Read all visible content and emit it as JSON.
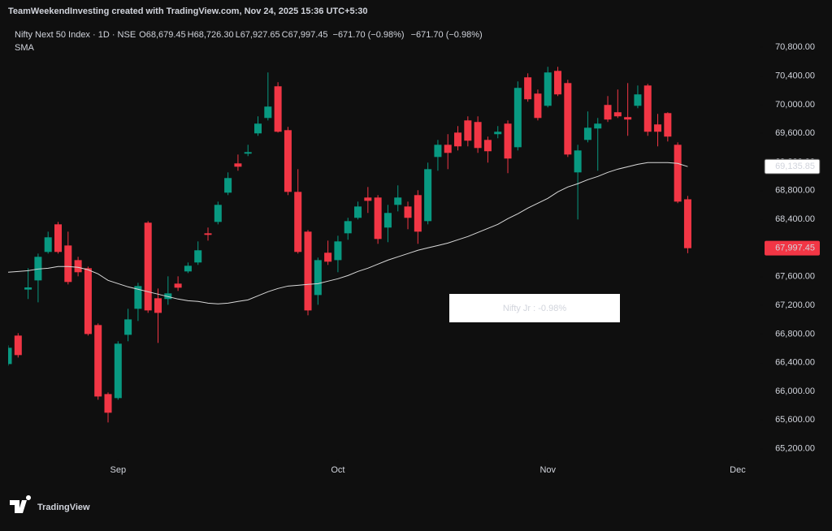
{
  "chart_data": {
    "type": "candlestick",
    "caption": "TeamWeekendInvesting created with TradingView.com, Nov 24, 2025 15:36 UTC+5:30",
    "symbol": "Nifty Next 50 Index · 1D · NSE",
    "ohlc_legend": [
      {
        "key": "O",
        "label": "68,679.45"
      },
      {
        "key": "H",
        "label": "68,726.30"
      },
      {
        "key": "L",
        "label": "67,927.65"
      },
      {
        "key": "C",
        "label": "67,997.45"
      }
    ],
    "change_labels": [
      "−671.70 (−0.98%)",
      "−671.70 (−0.98%)"
    ],
    "annotation": "Nifty Jr : -0.98%",
    "logo": "TradingView",
    "up_color": "#089981",
    "down_color": "#f23645",
    "open": [
      66381,
      66778,
      67420,
      67548,
      67945,
      68330,
      68035,
      67831,
      67718,
      66925,
      65962,
      65906,
      66789,
      67152,
      68353,
      67299,
      67288,
      67503,
      67673,
      67798,
      68205,
      68364,
      68772,
      69180,
      69316,
      69599,
      69814,
      70256,
      69644,
      68783,
      68228,
      67344,
      67934,
      67831,
      68205,
      68421,
      68704,
      68704,
      68285,
      68602,
      68579,
      68738,
      68375,
      69270,
      69440,
      69610,
      69780,
      69758,
      69508,
      69588,
      69735,
      69406,
      70381,
      70154,
      69984,
      70471,
      70301,
      69055,
      69508,
      69667,
      69996,
      69894,
      69826,
      69984,
      70267,
      69724,
      69882,
      69440,
      68679.45
    ],
    "high": [
      66642,
      66812,
      67718,
      67922,
      68228,
      68364,
      68228,
      67877,
      67741,
      66948,
      65985,
      66699,
      67152,
      67514,
      68375,
      67435,
      67605,
      67605,
      67798,
      68092,
      68285,
      68647,
      69055,
      69304,
      69440,
      69837,
      70449,
      70313,
      69690,
      69100,
      68251,
      67866,
      68103,
      68171,
      68421,
      68647,
      68851,
      68738,
      68602,
      68874,
      68647,
      68806,
      69191,
      69508,
      69588,
      69701,
      69837,
      69837,
      69554,
      69701,
      69780,
      70324,
      70437,
      70211,
      70528,
      70528,
      70347,
      69440,
      69905,
      69814,
      70120,
      70211,
      70301,
      70267,
      70290,
      69871,
      69894,
      69474,
      68726.3
    ],
    "low": [
      66359,
      66472,
      67288,
      67242,
      67922,
      67922,
      67492,
      67605,
      66778,
      65883,
      65566,
      65883,
      66699,
      66982,
      67095,
      66676,
      67208,
      67401,
      67650,
      67764,
      68103,
      68330,
      68738,
      69078,
      69282,
      69565,
      69780,
      69610,
      68738,
      67922,
      67061,
      67208,
      67764,
      67662,
      68115,
      68398,
      68489,
      68058,
      68081,
      68511,
      68262,
      68058,
      68330,
      69078,
      69100,
      69361,
      69418,
      69327,
      69191,
      69531,
      69044,
      69361,
      70041,
      69780,
      69962,
      70120,
      69270,
      68398,
      69474,
      69078,
      69758,
      69814,
      69565,
      69950,
      69565,
      69418,
      69486,
      68625,
      67927.65
    ],
    "close": [
      66608,
      66506,
      67450,
      67877,
      68149,
      67945,
      67526,
      67662,
      66800,
      65928,
      65702,
      66665,
      67004,
      67469,
      67129,
      67095,
      67367,
      67446,
      67752,
      67968,
      68183,
      68602,
      68976,
      69134,
      69338,
      69735,
      69973,
      69622,
      68783,
      67945,
      67129,
      67831,
      67809,
      68092,
      68375,
      68579,
      68658,
      68126,
      68489,
      68704,
      68421,
      68228,
      69100,
      69440,
      69327,
      69418,
      69497,
      69395,
      69350,
      69622,
      69248,
      70234,
      70075,
      69814,
      70449,
      70143,
      69304,
      69361,
      69678,
      69735,
      69792,
      69837,
      69792,
      70143,
      69622,
      69622,
      69554,
      68647,
      67997.45
    ],
    "last_label": "67,997.45",
    "sma": {
      "name": "SMA",
      "color": "#d9d9d9",
      "last_label": "69,135.85",
      "values": [
        67662,
        67673,
        67684,
        67707,
        67718,
        67741,
        67741,
        67730,
        67696,
        67639,
        67548,
        67503,
        67458,
        67424,
        67390,
        67356,
        67322,
        67288,
        67265,
        67254,
        67231,
        67220,
        67231,
        67254,
        67276,
        67333,
        67390,
        67435,
        67469,
        67480,
        67492,
        67503,
        67537,
        67571,
        67616,
        67673,
        67718,
        67775,
        67831,
        67877,
        67922,
        67968,
        68002,
        68035,
        68069,
        68115,
        68160,
        68217,
        68273,
        68330,
        68409,
        68477,
        68557,
        68625,
        68693,
        68783,
        68851,
        68897,
        68953,
        68998,
        69055,
        69100,
        69134,
        69168,
        69191,
        69191,
        69191,
        69180,
        69135.85
      ]
    },
    "xlim": [
      0,
      75.2
    ],
    "xticks": [
      {
        "value": 11,
        "label": "Sep"
      },
      {
        "value": 33,
        "label": "Oct"
      },
      {
        "value": 54,
        "label": "Nov"
      },
      {
        "value": 73,
        "label": "Dec"
      }
    ],
    "ylim": [
      65060,
      71120
    ],
    "yticks": [
      {
        "value": 65200,
        "label": "65,200.00"
      },
      {
        "value": 65600,
        "label": "65,600.00"
      },
      {
        "value": 66000,
        "label": "66,000.00"
      },
      {
        "value": 66400,
        "label": "66,400.00"
      },
      {
        "value": 66800,
        "label": "66,800.00"
      },
      {
        "value": 67200,
        "label": "67,200.00"
      },
      {
        "value": 67600,
        "label": "67,600.00"
      },
      {
        "value": 68000,
        "label": "68,000.00"
      },
      {
        "value": 68400,
        "label": "68,400.00"
      },
      {
        "value": 68800,
        "label": "68,800.00"
      },
      {
        "value": 69200,
        "label": "69,200.00"
      },
      {
        "value": 69600,
        "label": "69,600.00"
      },
      {
        "value": 70000,
        "label": "70,000.00"
      },
      {
        "value": 70400,
        "label": "70,400.00"
      },
      {
        "value": 70800,
        "label": "70,800.00"
      }
    ],
    "grid": false
  }
}
